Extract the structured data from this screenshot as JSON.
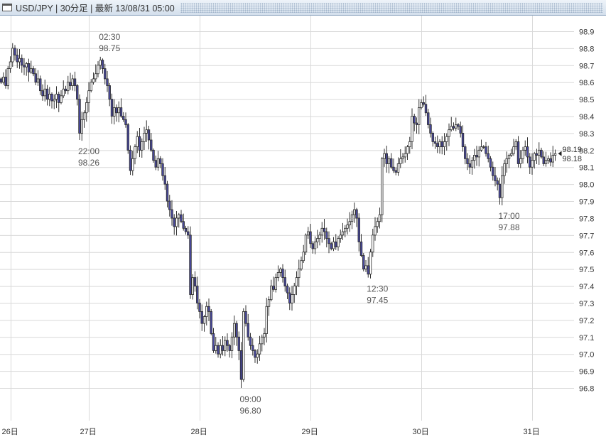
{
  "window": {
    "title": "USD/JPY | 30分足 | 最新 13/08/31 05:00",
    "icon": "window-icon"
  },
  "chart_data": {
    "type": "candlestick",
    "title": "USD/JPY | 30分足 | 最新 13/08/31 05:00",
    "ylim": [
      96.8,
      98.9
    ],
    "y_ticks": [
      "98.9",
      "98.8",
      "98.7",
      "98.6",
      "98.5",
      "98.4",
      "98.3",
      "98.2",
      "98.1",
      "98.0",
      "97.9",
      "97.8",
      "97.7",
      "97.6",
      "97.5",
      "97.4",
      "97.3",
      "97.2",
      "97.1",
      "97.0",
      "96.9",
      "96.8"
    ],
    "grid": true,
    "colors": {
      "up": "#ffffff",
      "down": "#4a4aa0",
      "outline": "#2a2a2a",
      "grid": "#d9d9d9"
    },
    "x_ticks": [
      {
        "label": "26日",
        "candle": 4
      },
      {
        "label": "27日",
        "candle": 38
      },
      {
        "label": "28日",
        "candle": 86
      },
      {
        "label": "29日",
        "candle": 134
      },
      {
        "label": "30日",
        "candle": 182
      },
      {
        "label": "31日",
        "candle": 230
      }
    ],
    "close": [
      98.6,
      98.63,
      98.58,
      98.68,
      98.72,
      98.8,
      98.76,
      98.72,
      98.74,
      98.7,
      98.69,
      98.71,
      98.66,
      98.68,
      98.65,
      98.6,
      98.62,
      98.55,
      98.52,
      98.56,
      98.5,
      98.53,
      98.49,
      98.5,
      98.53,
      98.48,
      98.52,
      98.56,
      98.55,
      98.6,
      98.58,
      98.62,
      98.58,
      98.5,
      98.3,
      98.38,
      98.42,
      98.48,
      98.55,
      98.6,
      98.62,
      98.65,
      98.7,
      98.73,
      98.68,
      98.62,
      98.58,
      98.5,
      98.4,
      98.45,
      98.42,
      98.45,
      98.4,
      98.38,
      98.35,
      98.2,
      98.08,
      98.15,
      98.22,
      98.28,
      98.2,
      98.25,
      98.3,
      98.32,
      98.26,
      98.2,
      98.14,
      98.1,
      98.15,
      98.12,
      98.05,
      98.0,
      97.9,
      97.85,
      97.8,
      97.75,
      97.8,
      97.82,
      97.78,
      97.74,
      97.72,
      97.7,
      97.35,
      97.45,
      97.4,
      97.3,
      97.25,
      97.18,
      97.22,
      97.28,
      97.25,
      97.12,
      97.02,
      97.05,
      97.0,
      97.05,
      97.02,
      97.08,
      97.05,
      97.02,
      97.1,
      97.18,
      97.1,
      97.02,
      96.85,
      97.25,
      97.18,
      97.1,
      97.05,
      97.02,
      96.98,
      97.0,
      97.06,
      97.1,
      97.12,
      97.28,
      97.32,
      97.4,
      97.38,
      97.45,
      97.48,
      97.5,
      97.45,
      97.4,
      97.36,
      97.3,
      97.35,
      97.4,
      97.45,
      97.5,
      97.55,
      97.6,
      97.7,
      97.72,
      97.65,
      97.62,
      97.66,
      97.68,
      97.7,
      97.74,
      97.72,
      97.68,
      97.65,
      97.62,
      97.66,
      97.63,
      97.68,
      97.7,
      97.72,
      97.74,
      97.76,
      97.78,
      97.82,
      97.85,
      97.8,
      97.66,
      97.58,
      97.5,
      97.52,
      97.47,
      97.6,
      97.7,
      97.75,
      97.78,
      97.82,
      98.15,
      98.18,
      98.12,
      98.15,
      98.1,
      98.08,
      98.07,
      98.12,
      98.15,
      98.16,
      98.18,
      98.22,
      98.25,
      98.4,
      98.36,
      98.35,
      98.45,
      98.48,
      98.47,
      98.42,
      98.35,
      98.3,
      98.25,
      98.24,
      98.22,
      98.25,
      98.22,
      98.25,
      98.28,
      98.32,
      98.34,
      98.33,
      98.35,
      98.34,
      98.3,
      98.22,
      98.15,
      98.12,
      98.1,
      98.14,
      98.17,
      98.16,
      98.2,
      98.22,
      98.22,
      98.18,
      98.15,
      98.1,
      98.05,
      98.02,
      98.0,
      97.92,
      98.05,
      98.12,
      98.15,
      98.17,
      98.18,
      98.22,
      98.25,
      98.12,
      98.15,
      98.2,
      98.22,
      98.16,
      98.1,
      98.14,
      98.18,
      98.17,
      98.2,
      98.16,
      98.12,
      98.14,
      98.15,
      98.13,
      98.17,
      98.18
    ],
    "extremes": [
      {
        "candle": 5,
        "high": 98.83
      },
      {
        "candle": 34,
        "low": 98.26
      },
      {
        "candle": 43,
        "high": 98.75
      },
      {
        "candle": 104,
        "low": 96.8
      },
      {
        "candle": 159,
        "low": 97.45
      },
      {
        "candle": 182,
        "high": 98.5
      },
      {
        "candle": 216,
        "low": 97.88
      }
    ],
    "annotations": [
      {
        "time": "02:30",
        "price": "98.75",
        "candle": 43,
        "value": 98.75,
        "position": "above"
      },
      {
        "time": "22:00",
        "price": "98.26",
        "candle": 34,
        "value": 98.26,
        "position": "below"
      },
      {
        "time": "09:00",
        "price": "96.80",
        "candle": 104,
        "value": 96.8,
        "position": "below"
      },
      {
        "time": "12:30",
        "price": "97.45",
        "candle": 159,
        "value": 97.45,
        "position": "below"
      },
      {
        "time": "17:00",
        "price": "97.88",
        "candle": 216,
        "value": 97.88,
        "position": "below"
      }
    ],
    "last_price": {
      "ask": "98.19",
      "bid": "98.18",
      "value": 98.18,
      "marker": "triangle-left-icon"
    }
  }
}
